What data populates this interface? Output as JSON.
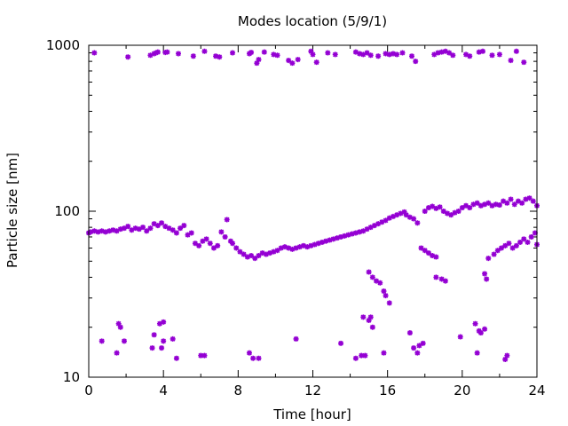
{
  "chart_data": {
    "type": "scatter",
    "title": "Modes location (5/9/1)",
    "xlabel": "Time [hour]",
    "ylabel": "Particle size [nm]",
    "xlim": [
      0,
      24
    ],
    "ylim": [
      10,
      1000
    ],
    "yscale": "log",
    "grid": false,
    "marker_color": "#9400D3",
    "x_ticks": [
      0,
      4,
      8,
      12,
      16,
      20,
      24
    ],
    "x_tick_labels": [
      "0",
      "4",
      "8",
      "12",
      "16",
      "20",
      "24"
    ],
    "y_ticks": [
      10,
      100,
      1000
    ],
    "y_tick_labels": [
      "10",
      "100",
      "1000"
    ],
    "points": [
      [
        0.3,
        900
      ],
      [
        2.1,
        850
      ],
      [
        3.3,
        870
      ],
      [
        3.5,
        890
      ],
      [
        3.6,
        900
      ],
      [
        3.7,
        910
      ],
      [
        4.1,
        905
      ],
      [
        4.2,
        910
      ],
      [
        4.8,
        890
      ],
      [
        5.6,
        860
      ],
      [
        6.2,
        920
      ],
      [
        6.8,
        860
      ],
      [
        7.0,
        850
      ],
      [
        7.7,
        900
      ],
      [
        8.6,
        890
      ],
      [
        8.7,
        905
      ],
      [
        9.0,
        780
      ],
      [
        9.1,
        820
      ],
      [
        9.4,
        910
      ],
      [
        9.9,
        880
      ],
      [
        10.1,
        870
      ],
      [
        10.7,
        810
      ],
      [
        10.9,
        780
      ],
      [
        11.2,
        820
      ],
      [
        11.9,
        920
      ],
      [
        12.0,
        880
      ],
      [
        12.2,
        790
      ],
      [
        12.8,
        900
      ],
      [
        13.2,
        880
      ],
      [
        14.3,
        910
      ],
      [
        14.5,
        890
      ],
      [
        14.7,
        880
      ],
      [
        14.9,
        900
      ],
      [
        15.1,
        870
      ],
      [
        15.5,
        860
      ],
      [
        15.9,
        890
      ],
      [
        16.1,
        880
      ],
      [
        16.3,
        890
      ],
      [
        16.5,
        880
      ],
      [
        16.8,
        900
      ],
      [
        17.3,
        860
      ],
      [
        17.5,
        800
      ],
      [
        18.5,
        880
      ],
      [
        18.7,
        900
      ],
      [
        18.9,
        910
      ],
      [
        19.1,
        920
      ],
      [
        19.3,
        900
      ],
      [
        19.5,
        870
      ],
      [
        20.2,
        880
      ],
      [
        20.4,
        860
      ],
      [
        20.9,
        910
      ],
      [
        21.1,
        920
      ],
      [
        21.6,
        870
      ],
      [
        22.0,
        880
      ],
      [
        22.6,
        810
      ],
      [
        22.9,
        920
      ],
      [
        23.3,
        790
      ],
      [
        0.0,
        74
      ],
      [
        0.1,
        75
      ],
      [
        0.3,
        76
      ],
      [
        0.5,
        75
      ],
      [
        0.7,
        76
      ],
      [
        0.9,
        75
      ],
      [
        1.1,
        76
      ],
      [
        1.3,
        77
      ],
      [
        1.5,
        76
      ],
      [
        1.7,
        78
      ],
      [
        1.9,
        79
      ],
      [
        2.1,
        81
      ],
      [
        2.3,
        77
      ],
      [
        2.5,
        79
      ],
      [
        2.7,
        78
      ],
      [
        2.9,
        80
      ],
      [
        3.1,
        76
      ],
      [
        3.3,
        79
      ],
      [
        3.5,
        84
      ],
      [
        3.7,
        82
      ],
      [
        3.9,
        85
      ],
      [
        4.1,
        81
      ],
      [
        4.3,
        79
      ],
      [
        4.5,
        77
      ],
      [
        4.7,
        74
      ],
      [
        4.9,
        79
      ],
      [
        5.1,
        82
      ],
      [
        5.3,
        72
      ],
      [
        5.5,
        74
      ],
      [
        5.7,
        64
      ],
      [
        5.9,
        62
      ],
      [
        6.1,
        66
      ],
      [
        6.3,
        68
      ],
      [
        6.5,
        64
      ],
      [
        6.7,
        60
      ],
      [
        6.9,
        62
      ],
      [
        7.1,
        75
      ],
      [
        7.3,
        70
      ],
      [
        7.4,
        89
      ],
      [
        7.6,
        66
      ],
      [
        7.7,
        64
      ],
      [
        7.9,
        60
      ],
      [
        8.1,
        57
      ],
      [
        8.3,
        55
      ],
      [
        8.5,
        53
      ],
      [
        8.7,
        54
      ],
      [
        8.9,
        52
      ],
      [
        9.1,
        54
      ],
      [
        9.3,
        56
      ],
      [
        9.5,
        55
      ],
      [
        9.7,
        56
      ],
      [
        9.9,
        57
      ],
      [
        10.1,
        58
      ],
      [
        10.3,
        60
      ],
      [
        10.5,
        61
      ],
      [
        10.7,
        60
      ],
      [
        10.9,
        59
      ],
      [
        11.1,
        60
      ],
      [
        11.3,
        61
      ],
      [
        11.5,
        62
      ],
      [
        11.7,
        61
      ],
      [
        11.9,
        62
      ],
      [
        12.1,
        63
      ],
      [
        12.3,
        64
      ],
      [
        12.5,
        65
      ],
      [
        12.7,
        66
      ],
      [
        12.9,
        67
      ],
      [
        13.1,
        68
      ],
      [
        13.3,
        69
      ],
      [
        13.5,
        70
      ],
      [
        13.7,
        71
      ],
      [
        13.9,
        72
      ],
      [
        14.1,
        73
      ],
      [
        14.3,
        74
      ],
      [
        14.5,
        75
      ],
      [
        14.7,
        76
      ],
      [
        14.9,
        78
      ],
      [
        15.1,
        80
      ],
      [
        15.3,
        82
      ],
      [
        15.5,
        84
      ],
      [
        15.7,
        86
      ],
      [
        15.9,
        88
      ],
      [
        16.1,
        91
      ],
      [
        16.3,
        93
      ],
      [
        16.5,
        95
      ],
      [
        16.7,
        97
      ],
      [
        16.9,
        99
      ],
      [
        17.0,
        95
      ],
      [
        17.2,
        92
      ],
      [
        17.4,
        90
      ],
      [
        17.6,
        85
      ],
      [
        17.8,
        60
      ],
      [
        18.0,
        58
      ],
      [
        18.2,
        56
      ],
      [
        18.4,
        54
      ],
      [
        18.6,
        53
      ],
      [
        18.0,
        100
      ],
      [
        18.2,
        105
      ],
      [
        18.4,
        107
      ],
      [
        18.6,
        104
      ],
      [
        18.8,
        106
      ],
      [
        19.0,
        100
      ],
      [
        19.2,
        97
      ],
      [
        19.4,
        95
      ],
      [
        19.6,
        98
      ],
      [
        19.8,
        100
      ],
      [
        20.0,
        105
      ],
      [
        20.2,
        108
      ],
      [
        20.4,
        105
      ],
      [
        20.6,
        110
      ],
      [
        20.8,
        112
      ],
      [
        21.0,
        108
      ],
      [
        21.2,
        110
      ],
      [
        21.4,
        112
      ],
      [
        21.6,
        108
      ],
      [
        21.8,
        110
      ],
      [
        22.0,
        109
      ],
      [
        22.2,
        115
      ],
      [
        22.4,
        112
      ],
      [
        22.6,
        118
      ],
      [
        22.8,
        110
      ],
      [
        23.0,
        115
      ],
      [
        23.2,
        112
      ],
      [
        23.4,
        118
      ],
      [
        23.6,
        120
      ],
      [
        23.8,
        115
      ],
      [
        24.0,
        108
      ],
      [
        21.4,
        52
      ],
      [
        21.7,
        55
      ],
      [
        21.9,
        58
      ],
      [
        22.1,
        60
      ],
      [
        22.3,
        62
      ],
      [
        22.5,
        64
      ],
      [
        22.7,
        60
      ],
      [
        22.9,
        62
      ],
      [
        23.1,
        65
      ],
      [
        23.3,
        68
      ],
      [
        23.5,
        65
      ],
      [
        23.7,
        70
      ],
      [
        23.9,
        74
      ],
      [
        24.0,
        63
      ],
      [
        15.0,
        43
      ],
      [
        15.2,
        40
      ],
      [
        15.4,
        38
      ],
      [
        15.6,
        37
      ],
      [
        15.8,
        33
      ],
      [
        15.9,
        31
      ],
      [
        16.1,
        28
      ],
      [
        18.6,
        40
      ],
      [
        18.9,
        39
      ],
      [
        19.1,
        38
      ],
      [
        21.2,
        42
      ],
      [
        21.3,
        39
      ],
      [
        0.7,
        16.5
      ],
      [
        1.5,
        14
      ],
      [
        1.6,
        21
      ],
      [
        1.7,
        20
      ],
      [
        1.9,
        16.5
      ],
      [
        3.5,
        18
      ],
      [
        3.4,
        15
      ],
      [
        3.8,
        21
      ],
      [
        4.0,
        21.5
      ],
      [
        4.0,
        16.5
      ],
      [
        3.9,
        15
      ],
      [
        4.5,
        17
      ],
      [
        4.7,
        13
      ],
      [
        6.0,
        13.5
      ],
      [
        6.2,
        13.5
      ],
      [
        8.6,
        14
      ],
      [
        8.8,
        13
      ],
      [
        9.1,
        13
      ],
      [
        11.1,
        17
      ],
      [
        13.5,
        16
      ],
      [
        14.3,
        13
      ],
      [
        14.6,
        13.5
      ],
      [
        14.8,
        13.5
      ],
      [
        14.7,
        23
      ],
      [
        15.0,
        22
      ],
      [
        15.1,
        23
      ],
      [
        15.2,
        20
      ],
      [
        15.8,
        14
      ],
      [
        17.2,
        18.5
      ],
      [
        17.4,
        15
      ],
      [
        17.6,
        14
      ],
      [
        17.7,
        15.5
      ],
      [
        17.9,
        16
      ],
      [
        19.9,
        17.5
      ],
      [
        20.7,
        21
      ],
      [
        20.9,
        19
      ],
      [
        21.0,
        18.5
      ],
      [
        21.2,
        19.5
      ],
      [
        20.8,
        14
      ],
      [
        22.3,
        12.8
      ],
      [
        22.4,
        13.5
      ]
    ]
  }
}
